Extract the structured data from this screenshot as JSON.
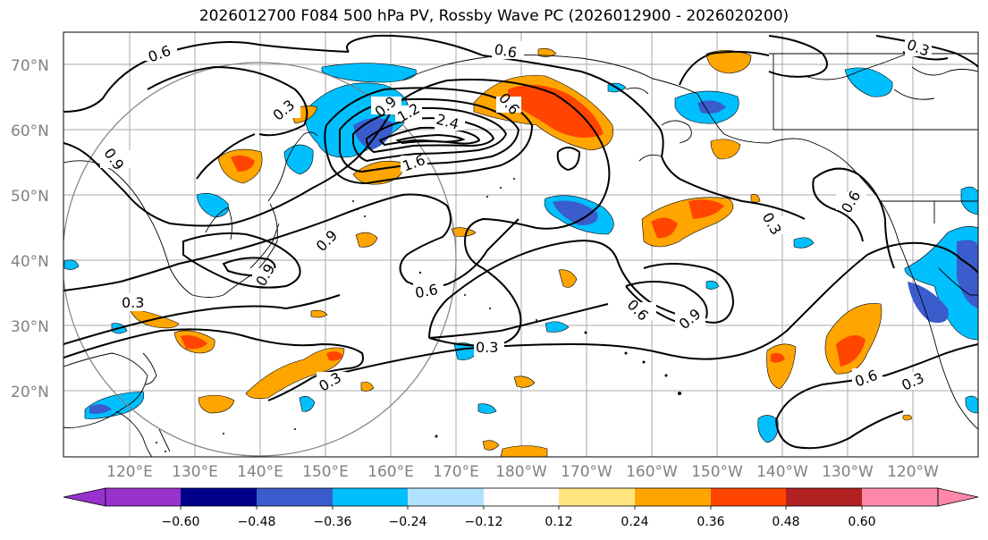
{
  "title": "2026012700 F084 500 hPa PV, Rossby Wave PC (2026012900 - 2026020200)",
  "lat_labels": [
    "70°N",
    "60°N",
    "50°N",
    "40°N",
    "30°N",
    "20°N"
  ],
  "lon_labels": [
    "120°E",
    "130°E",
    "140°E",
    "150°E",
    "160°E",
    "170°E",
    "180°W",
    "170°W",
    "160°W",
    "150°W",
    "140°W",
    "130°W",
    "120°W"
  ],
  "contour_labels": [
    "0.6",
    "0.6",
    "0.3",
    "0.9",
    "0.9",
    "1.2",
    "2.4",
    "1.6",
    "0.9",
    "0.9",
    "0.3",
    "0.6",
    "0.6",
    "0.3",
    "0.6",
    "0.9",
    "0.3",
    "0.3",
    "0.3",
    "0.6",
    "0.3",
    "0.6"
  ],
  "colorbar": {
    "ticks": [
      "−0.60",
      "−0.48",
      "−0.36",
      "−0.24",
      "−0.12",
      "0.12",
      "0.24",
      "0.36",
      "0.48",
      "0.60"
    ],
    "colors": [
      "#9932cc",
      "#00008b",
      "#3a5ccc",
      "#00bfff",
      "#b0e2ff",
      "#ffffff",
      "#ffe680",
      "#ffa500",
      "#ff4500",
      "#b22222",
      "#ff88aa"
    ]
  },
  "colors": {
    "neg_light": "#b0e2ff",
    "neg_mid": "#00bfff",
    "neg_strong": "#3a5ccc",
    "pos_light": "#ffe680",
    "pos_mid": "#ffa500",
    "pos_strong": "#ff4500"
  }
}
